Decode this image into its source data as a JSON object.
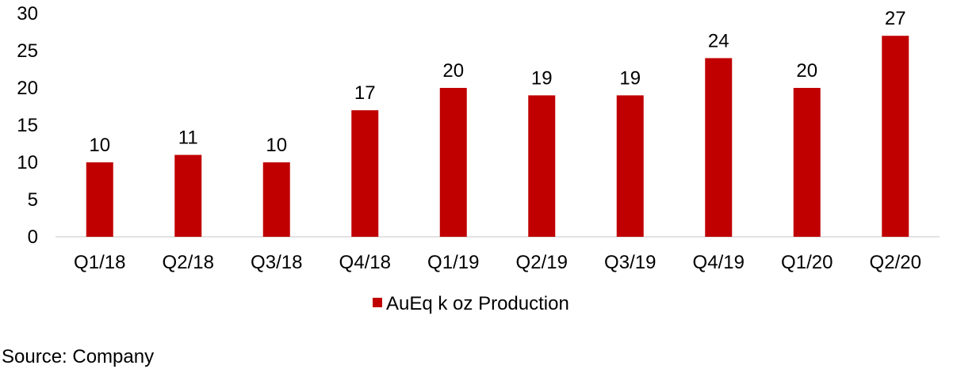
{
  "chart_data": {
    "type": "bar",
    "categories": [
      "Q1/18",
      "Q2/18",
      "Q3/18",
      "Q4/18",
      "Q1/19",
      "Q2/19",
      "Q3/19",
      "Q4/19",
      "Q1/20",
      "Q2/20"
    ],
    "series": [
      {
        "name": "AuEq k oz Production",
        "values": [
          10,
          11,
          10,
          17,
          20,
          19,
          19,
          24,
          20,
          27
        ],
        "color": "#C00000"
      }
    ],
    "ylim": [
      0,
      30
    ],
    "yticks": [
      0,
      5,
      10,
      15,
      20,
      25,
      30
    ],
    "xlabel": "",
    "ylabel": "",
    "grid": false,
    "data_labels": true,
    "legend_position": "bottom"
  },
  "source": "Source: Company"
}
